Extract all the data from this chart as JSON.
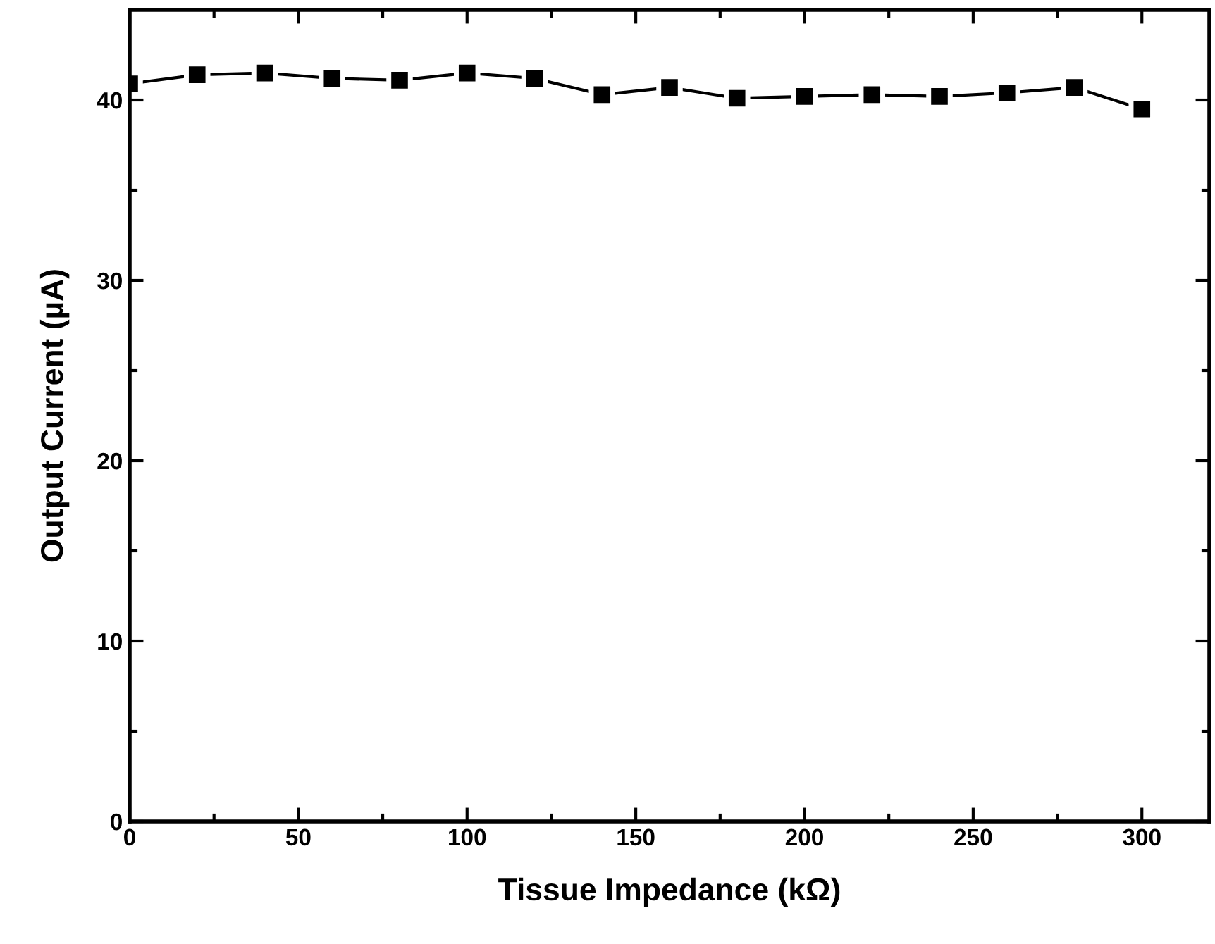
{
  "chart_data": {
    "type": "line",
    "xlabel": "Tissue Impedance (kΩ)",
    "ylabel": "Output Current (µA)",
    "x": [
      0,
      20,
      40,
      60,
      80,
      100,
      120,
      140,
      160,
      180,
      200,
      220,
      240,
      260,
      280,
      300
    ],
    "series": [
      {
        "color": "#000000",
        "values": [
          40.9,
          41.4,
          41.5,
          41.2,
          41.1,
          41.5,
          41.2,
          40.3,
          40.7,
          40.1,
          40.2,
          40.3,
          40.2,
          40.4,
          40.7,
          39.5
        ]
      }
    ],
    "xlim": [
      0,
      320
    ],
    "xticks": [
      0,
      50,
      100,
      150,
      200,
      250,
      300
    ],
    "ylim": [
      0,
      45
    ],
    "yticks": [
      0,
      10,
      20,
      30,
      40
    ],
    "grid": false,
    "legend": false,
    "marker": "square",
    "line_style": "solid"
  }
}
